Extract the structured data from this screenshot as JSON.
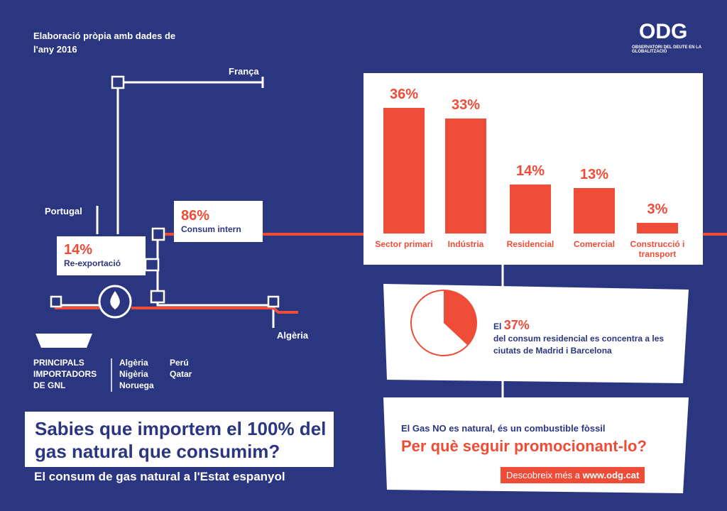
{
  "source": "Elaboració pròpia amb dades de l'any 2016",
  "logo": {
    "name": "ODG",
    "subtitle": "OBSERVATORI DEL DEUTE EN LA GLOBALITZACIÓ"
  },
  "map": {
    "france": "França",
    "portugal": "Portugal",
    "algeria": "Algèria",
    "internal": {
      "share": "86%",
      "label": "Consum intern"
    },
    "reexport": {
      "share": "14%",
      "label": "Re-exportació"
    },
    "importers_label": "PRINCIPALS IMPORTADORS DE GNL",
    "importers": [
      "Algèria",
      "Nigèria",
      "Noruega",
      "Perú",
      "Qatar"
    ]
  },
  "chart_data": [
    {
      "type": "bar",
      "categories": [
        "Sector primari",
        "Indústria",
        "Residencial",
        "Comercial",
        "Construcció i transport"
      ],
      "values": [
        36,
        33,
        14,
        13,
        3
      ],
      "value_labels": [
        "36%",
        "33%",
        "14%",
        "13%",
        "3%"
      ],
      "color": "#ee4c37"
    },
    {
      "type": "pie",
      "values": [
        37
      ],
      "value_labels": [
        "37%"
      ],
      "color": "#ee4c37",
      "text_before": "El",
      "caption": "del consum residencial es concentra a les ciutats de Madrid i Barcelona"
    }
  ],
  "headline": {
    "title": "Sabies que importem el 100% del gas natural que consumim?",
    "subtitle": "El consum de gas natural a l'Estat espanyol"
  },
  "message": {
    "line1": "El Gas NO es natural, és un combustible fòssil",
    "line2": "Per què seguir promocionant-lo?",
    "cta": "Descobreix més a",
    "url": "www.odg.cat"
  }
}
